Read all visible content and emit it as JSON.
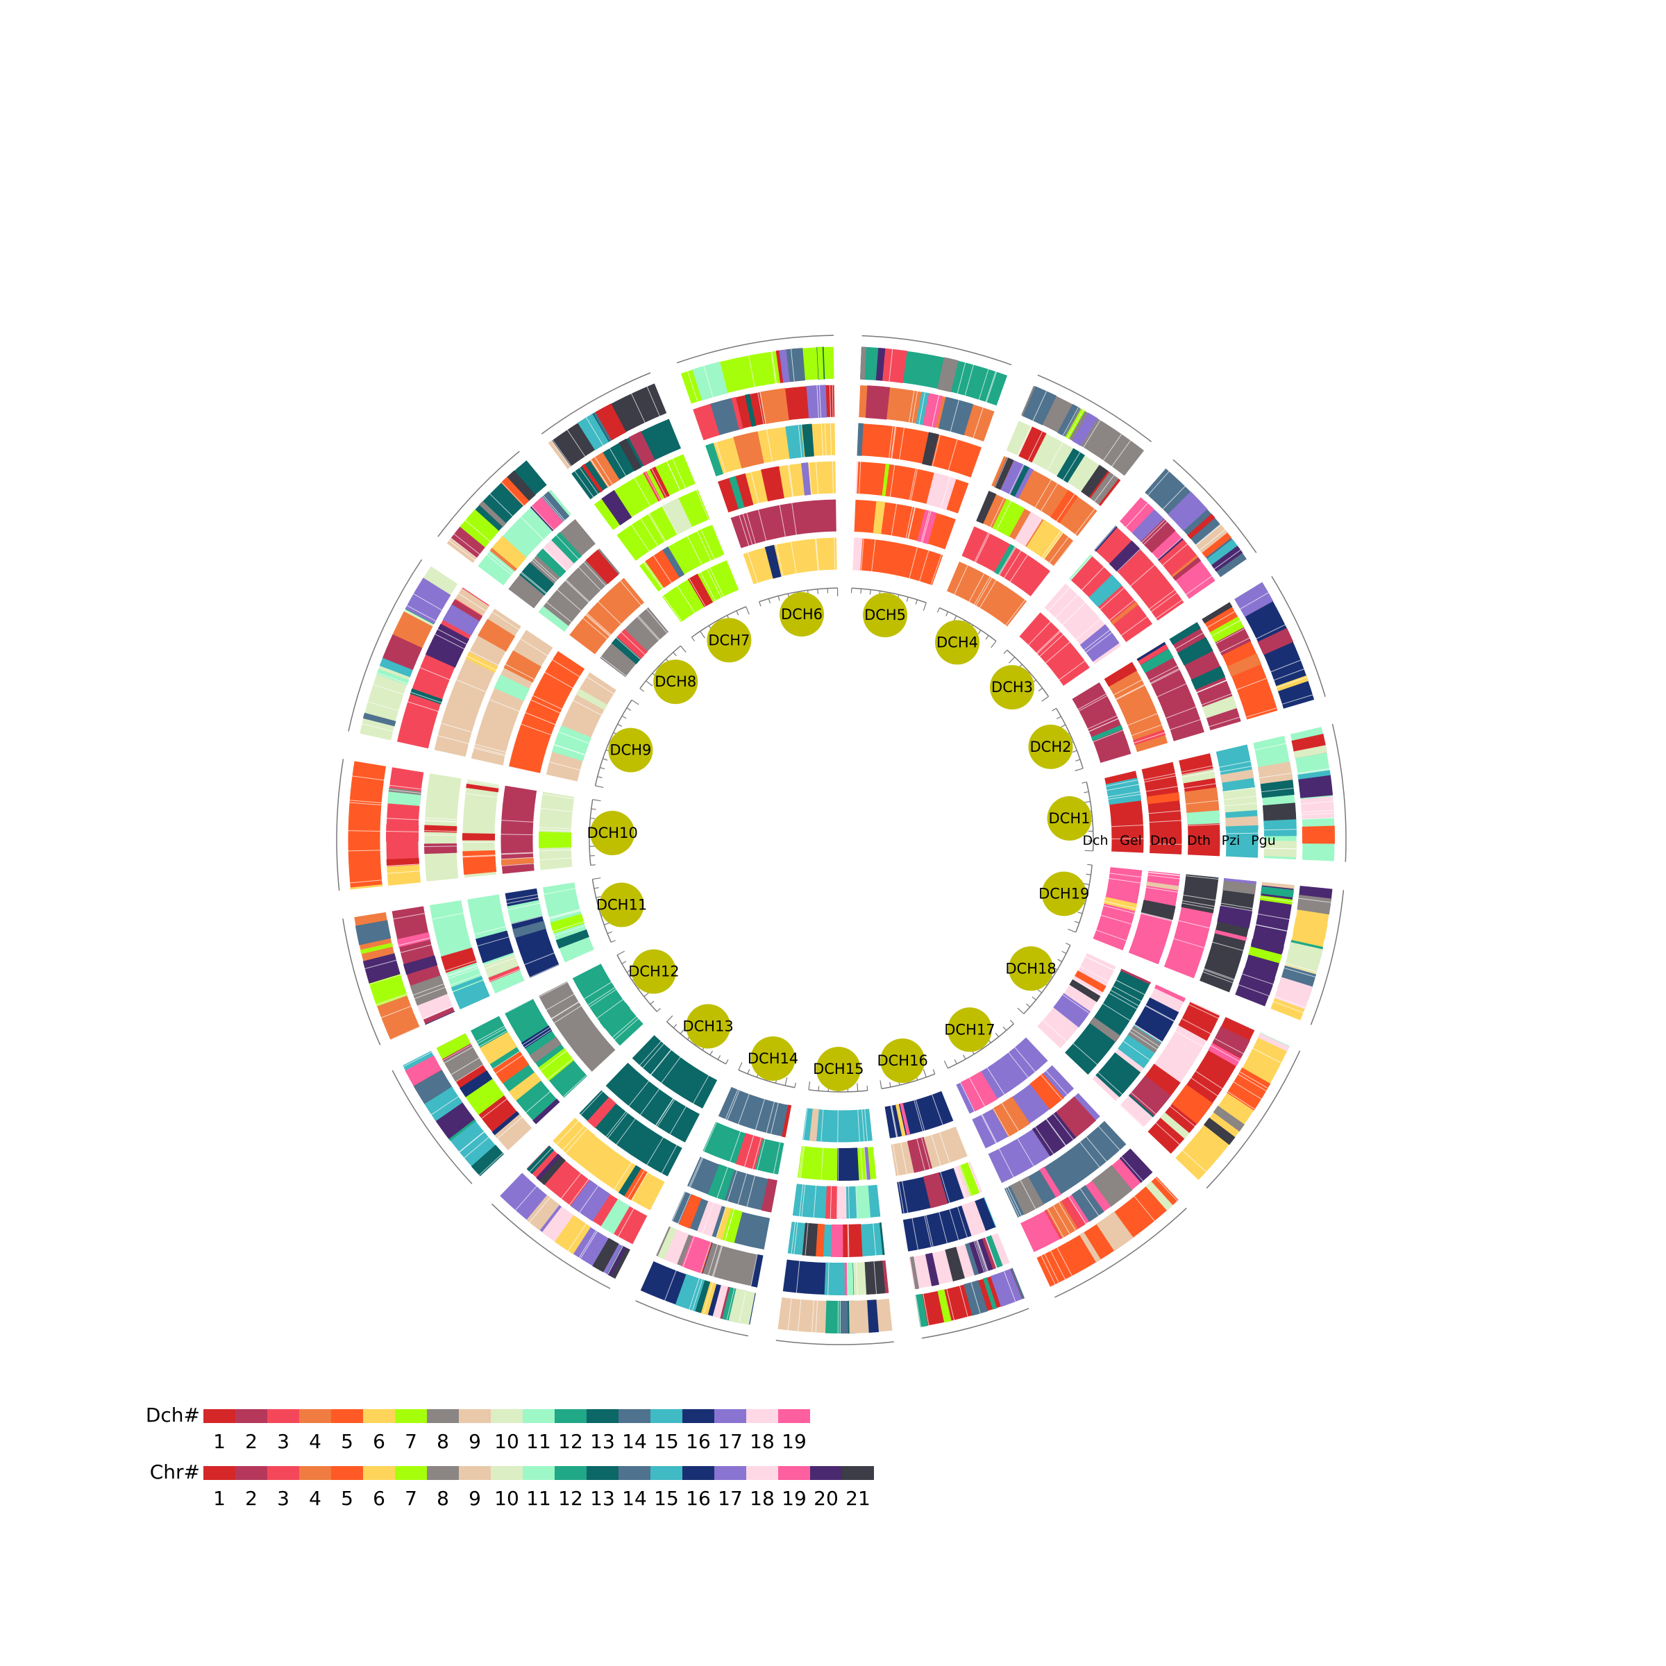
{
  "palette": [
    "#d62728",
    "#b5385b",
    "#f4485a",
    "#f07c41",
    "#ff5a25",
    "#fed55a",
    "#a6ff0a",
    "#8b8584",
    "#e9c9aa",
    "#dceec3",
    "#9ef7c7",
    "#20a887",
    "#0c6767",
    "#4f728e",
    "#40bac4",
    "#192f73",
    "#8a74d1",
    "#ffd8e5",
    "#fe5f9e",
    "#4a2970",
    "#3c3d46"
  ],
  "tracks": [
    "Dch",
    "Gel",
    "Dno",
    "Dth",
    "Pzi",
    "Pgu"
  ],
  "chromosomes": [
    {
      "label": "DCH1",
      "base": [
        0,
        0,
        0,
        14,
        10,
        10
      ]
    },
    {
      "label": "DCH2",
      "base": [
        1,
        3,
        1,
        1,
        4,
        15
      ]
    },
    {
      "label": "DCH3",
      "base": [
        2,
        17,
        2,
        2,
        18,
        13
      ]
    },
    {
      "label": "DCH4",
      "base": [
        3,
        2,
        3,
        3,
        9,
        7
      ]
    },
    {
      "label": "DCH5",
      "base": [
        4,
        4,
        4,
        4,
        3,
        11
      ]
    },
    {
      "label": "DCH6",
      "base": [
        5,
        1,
        5,
        5,
        0,
        6
      ]
    },
    {
      "label": "DCH7",
      "base": [
        6,
        6,
        6,
        6,
        12,
        20
      ]
    },
    {
      "label": "DCH8",
      "base": [
        7,
        3,
        7,
        7,
        10,
        12
      ]
    },
    {
      "label": "DCH9",
      "base": [
        8,
        4,
        8,
        8,
        2,
        9
      ]
    },
    {
      "label": "DCH10",
      "base": [
        9,
        1,
        9,
        9,
        2,
        4
      ]
    },
    {
      "label": "DCH11",
      "base": [
        10,
        15,
        10,
        10,
        1,
        3
      ]
    },
    {
      "label": "DCH12",
      "base": [
        11,
        7,
        11,
        11,
        0,
        14
      ]
    },
    {
      "label": "DCH13",
      "base": [
        12,
        12,
        12,
        5,
        2,
        16
      ]
    },
    {
      "label": "DCH14",
      "base": [
        13,
        11,
        13,
        13,
        7,
        15
      ]
    },
    {
      "label": "DCH15",
      "base": [
        14,
        6,
        14,
        14,
        15,
        8
      ]
    },
    {
      "label": "DCH16",
      "base": [
        15,
        8,
        15,
        15,
        17,
        0
      ]
    },
    {
      "label": "DCH17",
      "base": [
        16,
        16,
        16,
        13,
        18,
        4
      ]
    },
    {
      "label": "DCH18",
      "base": [
        17,
        12,
        17,
        17,
        0,
        5
      ]
    },
    {
      "label": "DCH19",
      "base": [
        18,
        18,
        18,
        20,
        19,
        5
      ]
    }
  ],
  "legend": {
    "dch": {
      "title": "Dch#",
      "labels": [
        "1",
        "2",
        "3",
        "4",
        "5",
        "6",
        "7",
        "8",
        "9",
        "10",
        "11",
        "12",
        "13",
        "14",
        "15",
        "16",
        "17",
        "18",
        "19"
      ]
    },
    "chr": {
      "title": "Chr#",
      "labels": [
        "1",
        "2",
        "3",
        "4",
        "5",
        "6",
        "7",
        "8",
        "9",
        "10",
        "11",
        "12",
        "13",
        "14",
        "15",
        "16",
        "17",
        "18",
        "19",
        "20",
        "21"
      ]
    }
  }
}
